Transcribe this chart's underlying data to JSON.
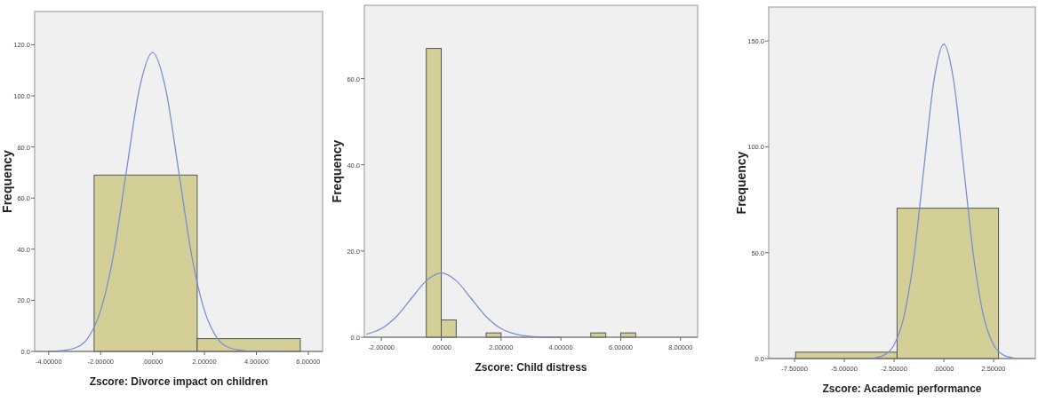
{
  "chart_data": [
    {
      "type": "histogram",
      "bins": [
        -2.25,
        1.72,
        5.69
      ],
      "values": [
        69,
        5
      ],
      "color": "#d3cf96",
      "xlim": [
        -4.54,
        6.55
      ],
      "ylim": [
        0,
        133
      ],
      "xticks": [
        {
          "value": -4,
          "label": "-4.00000"
        },
        {
          "value": -2,
          "label": "-2.00000"
        },
        {
          "value": 0,
          "label": ".00000"
        },
        {
          "value": 2,
          "label": "2.00000"
        },
        {
          "value": 4,
          "label": "4.00000"
        },
        {
          "value": 6,
          "label": "6.00000"
        }
      ],
      "yticks": [
        {
          "value": 0,
          "label": "0.0"
        },
        {
          "value": 20,
          "label": "20.0"
        },
        {
          "value": 40,
          "label": "40.0"
        },
        {
          "value": 60,
          "label": "60.0"
        },
        {
          "value": 80,
          "label": "80.0"
        },
        {
          "value": 100,
          "label": "100.0"
        },
        {
          "value": 120,
          "label": "120.0"
        }
      ],
      "xlabel": "Zscore:  Divorce impact on children",
      "ylabel": "Frequency",
      "series": [
        {
          "type": "line",
          "color": "#7b8fd0",
          "x": [
            -4,
            -3.5,
            -3,
            -2.5,
            -2,
            -1.5,
            -1,
            -0.5,
            0,
            0.5,
            1,
            1.5,
            2,
            2.5,
            3,
            3.5,
            4,
            5
          ],
          "values": [
            0,
            0.3,
            1.3,
            5.1,
            16,
            38,
            71,
            103,
            117,
            103,
            71,
            38,
            16,
            5.1,
            1.3,
            0.3,
            0,
            0
          ]
        }
      ]
    },
    {
      "type": "histogram",
      "bins": [
        -0.5,
        0,
        0.5,
        1,
        1.5,
        2,
        2.5,
        3,
        3.5,
        4,
        4.5,
        5,
        5.5,
        6,
        6.5
      ],
      "values": [
        67,
        4,
        0,
        0,
        1,
        0,
        0,
        0,
        0,
        0,
        0,
        1,
        0,
        1
      ],
      "color": "#d3cf96",
      "xlim": [
        -2.57,
        8.57
      ],
      "ylim": [
        0,
        77
      ],
      "xticks": [
        {
          "value": -2,
          "label": "-2.00000"
        },
        {
          "value": 0,
          "label": ".00000"
        },
        {
          "value": 2,
          "label": "2.00000"
        },
        {
          "value": 4,
          "label": "4.00000"
        },
        {
          "value": 6,
          "label": "6.00000"
        },
        {
          "value": 8,
          "label": "8.00000"
        }
      ],
      "yticks": [
        {
          "value": 0,
          "label": "0.0"
        },
        {
          "value": 20,
          "label": "20.0"
        },
        {
          "value": 40,
          "label": "40.0"
        },
        {
          "value": 60,
          "label": "60.0"
        }
      ],
      "xlabel": "Zscore:  Child distress",
      "ylabel": "Frequency",
      "series": [
        {
          "type": "line",
          "color": "#7b8fd0",
          "x": [
            -2.5,
            -2,
            -1.5,
            -1,
            -0.5,
            0,
            0.5,
            1,
            1.5,
            2,
            2.5,
            3,
            3.5,
            4
          ],
          "values": [
            0.7,
            2,
            4.8,
            9,
            13.1,
            14.9,
            13.1,
            9,
            4.8,
            2,
            0.7,
            0.2,
            0,
            0
          ]
        }
      ]
    },
    {
      "type": "histogram",
      "bins": [
        -7.45,
        -2.35,
        2.75
      ],
      "values": [
        3,
        71
      ],
      "color": "#d3cf96",
      "xlim": [
        -8.8,
        4.6
      ],
      "ylim": [
        0,
        166
      ],
      "xticks": [
        {
          "value": -7.5,
          "label": "-7.50000"
        },
        {
          "value": -5,
          "label": "-5.00000"
        },
        {
          "value": -2.5,
          "label": "-2.50000"
        },
        {
          "value": 0,
          "label": ".00000"
        },
        {
          "value": 2.5,
          "label": "2.50000"
        }
      ],
      "yticks": [
        {
          "value": 0,
          "label": "0.0"
        },
        {
          "value": 50,
          "label": "50.0"
        },
        {
          "value": 100,
          "label": "100.0"
        },
        {
          "value": 150,
          "label": "150.0"
        }
      ],
      "xlabel": "Zscore:  Academic performance",
      "ylabel": "Frequency",
      "series": [
        {
          "type": "line",
          "color": "#7b8fd0",
          "x": [
            -3.5,
            -3,
            -2.5,
            -2,
            -1.5,
            -1,
            -0.5,
            0,
            0.5,
            1,
            1.5,
            2,
            2.5,
            3,
            3.5
          ],
          "values": [
            0.3,
            1.6,
            6.5,
            20,
            48,
            90,
            131,
            148.5,
            131,
            90,
            48,
            20,
            6.5,
            1.6,
            0.3
          ]
        }
      ]
    }
  ]
}
